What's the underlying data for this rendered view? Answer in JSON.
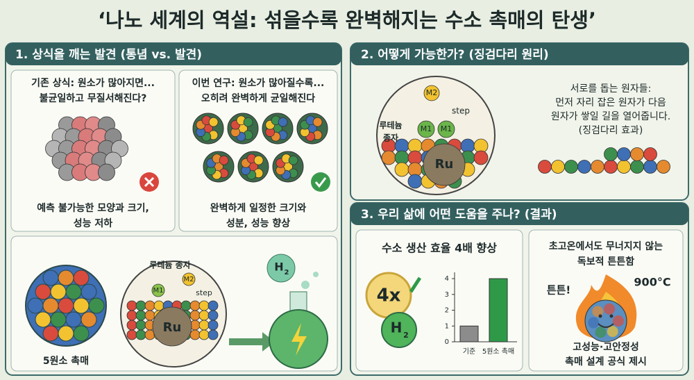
{
  "title": "‘나노 세계의 역설: 섞을수록 완벽해지는 수소 촉매의 탄생’",
  "panel1": {
    "heading": "1. 상식을 깨는 발견 (통념 vs. 발견)",
    "old": {
      "caption": [
        "기존 상식: 원소가 많아지면...",
        "불균일하고 무질서해진다?"
      ],
      "result": [
        "예측 불가능한 모양과 크기,",
        "성능 저하"
      ]
    },
    "new": {
      "caption": [
        "이번 연구: 원소가 많아질수록...",
        "오히려 완벽하게 균일해진다"
      ],
      "result": [
        "완벽하게 일정한 크기와",
        "성분, 성능 향상"
      ]
    },
    "particle_label": "5원소 촉매",
    "seed_label": "루테늄 종자",
    "m1": "M1",
    "m2": "M2",
    "step": "step",
    "ru": "Ru",
    "h2_symbol": "H",
    "h2_sub": "2"
  },
  "panel2": {
    "heading": "2. 어떻게 가능한가? (징검다리 원리)",
    "m2": "M2",
    "step": "step",
    "seed_label": [
      "루테늄",
      "종자"
    ],
    "m1": [
      "M1",
      "M1"
    ],
    "ru": "Ru",
    "text": [
      "서로를 돕는 원자들:",
      "먼저 자리 잡은 원자가 다음",
      "원자가 쌓일 길을 열어줍니다.",
      "(징검다리 효과)"
    ]
  },
  "panel3": {
    "heading": "3. 우리 삶에 어떤 도움을 주나? (결과)",
    "left_title": "수소 생산 효율 4배 향상",
    "badge": "4x",
    "h2_symbol": "H",
    "h2_sub": "2",
    "right_title": [
      "초고온에서도 무너지지 않는",
      "독보적 튼튼함"
    ],
    "tough": "튼튼!",
    "temperature": "900°C",
    "conclusion": [
      "고성능·고안정성",
      "촉매 설계 공식 제시"
    ]
  },
  "chart_data": {
    "type": "bar",
    "categories": [
      "기준",
      "5원소 촉매"
    ],
    "values": [
      1,
      4
    ],
    "colors": [
      "#8c8c8c",
      "#2e9a48"
    ],
    "ylim": [
      0,
      4.4
    ],
    "yticks": [
      0,
      1,
      2,
      3,
      4
    ]
  }
}
